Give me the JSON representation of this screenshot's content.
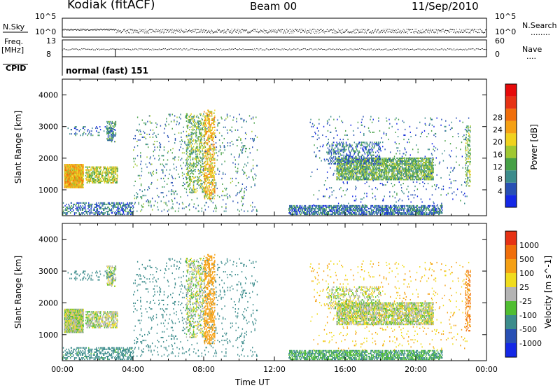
{
  "header": {
    "station": "Kodiak (fitACF)",
    "beam": "Beam 00",
    "date": "11/Sep/2010"
  },
  "panels": {
    "noise": {
      "left_label": "N.Sky",
      "left_ticks": [
        "10^5",
        "10^0"
      ],
      "right_ticks": [
        "10^5",
        "10^0"
      ],
      "right_label": "N.Search",
      "right_legend": "........"
    },
    "freq": {
      "left_label_1": "Freq.",
      "left_label_2": "[MHz]",
      "left_ticks": [
        "13",
        "8"
      ],
      "right_ticks": [
        "60",
        "0"
      ],
      "right_label": "Nave",
      "right_legend": "...."
    },
    "cpid": {
      "label": "CPID",
      "text": "normal (fast) 151"
    }
  },
  "axes": {
    "x_ticks": [
      "00:00",
      "04:00",
      "08:00",
      "12:00",
      "16:00",
      "20:00",
      "00:00"
    ],
    "x_label": "Time UT",
    "y_label": "Slant Range [km]",
    "y_ticks": [
      "1000",
      "2000",
      "3000",
      "4000"
    ]
  },
  "colorbars": {
    "power": {
      "label": "Power [dB]",
      "ticks": [
        "4",
        "8",
        "12",
        "16",
        "20",
        "24",
        "28"
      ],
      "colors": [
        "#1428e6",
        "#2850b4",
        "#3c8c8c",
        "#46a046",
        "#a0c832",
        "#f0d21e",
        "#f5a014",
        "#f06e0a",
        "#e63214",
        "#e60a0a"
      ]
    },
    "velocity": {
      "label": "Velocity [m s^-1]",
      "ticks": [
        "1000",
        "500",
        "100",
        "25",
        "-25",
        "-100",
        "-500",
        "-1000"
      ],
      "colors": [
        "#1428e6",
        "#2850b4",
        "#3c8c8c",
        "#50be32",
        "#b4b4b4",
        "#f0dc1e",
        "#f5a014",
        "#f06e0a",
        "#e63214"
      ]
    }
  },
  "chart_data": {
    "type": "heatmap",
    "x_range_hours": [
      0,
      24
    ],
    "y_range_km": [
      180,
      4500
    ],
    "clusters": [
      {
        "t0": 0.1,
        "t1": 1.2,
        "r0": 1050,
        "r1": 1800,
        "density": 0.95,
        "power": 18,
        "vel": 0
      },
      {
        "t0": 1.3,
        "t1": 3.1,
        "r0": 1200,
        "r1": 1700,
        "density": 0.55,
        "power": 14,
        "vel": 0
      },
      {
        "t0": 2.5,
        "t1": 3.0,
        "r0": 2500,
        "r1": 3150,
        "density": 0.4,
        "power": 8,
        "vel": 0
      },
      {
        "t0": 0.3,
        "t1": 3.0,
        "r0": 2700,
        "r1": 3000,
        "density": 0.12,
        "power": 6,
        "vel": 300
      },
      {
        "t0": 0.0,
        "t1": 4.0,
        "r0": 200,
        "r1": 600,
        "density": 0.35,
        "power": 6,
        "vel": 150
      },
      {
        "t0": 4.0,
        "t1": 11.0,
        "r0": 300,
        "r1": 3400,
        "density": 0.05,
        "power": 8,
        "vel": 200
      },
      {
        "t0": 7.0,
        "t1": 8.0,
        "r0": 900,
        "r1": 3400,
        "density": 0.25,
        "power": 12,
        "vel": 0
      },
      {
        "t0": 8.0,
        "t1": 8.6,
        "r0": 700,
        "r1": 3500,
        "density": 0.35,
        "power": 18,
        "vel": -300
      },
      {
        "t0": 12.8,
        "t1": 21.5,
        "r0": 200,
        "r1": 500,
        "density": 0.55,
        "power": 6,
        "vel": 100
      },
      {
        "t0": 15.5,
        "t1": 21.0,
        "r0": 1300,
        "r1": 2000,
        "density": 0.6,
        "power": 11,
        "vel": 0
      },
      {
        "t0": 15.0,
        "t1": 18.0,
        "r0": 1800,
        "r1": 2500,
        "density": 0.25,
        "power": 6,
        "vel": 0
      },
      {
        "t0": 14.0,
        "t1": 23.0,
        "r0": 500,
        "r1": 3300,
        "density": 0.03,
        "power": 6,
        "vel": -100
      },
      {
        "t0": 22.8,
        "t1": 23.1,
        "r0": 1100,
        "r1": 3000,
        "density": 0.3,
        "power": 12,
        "vel": -500
      }
    ]
  }
}
